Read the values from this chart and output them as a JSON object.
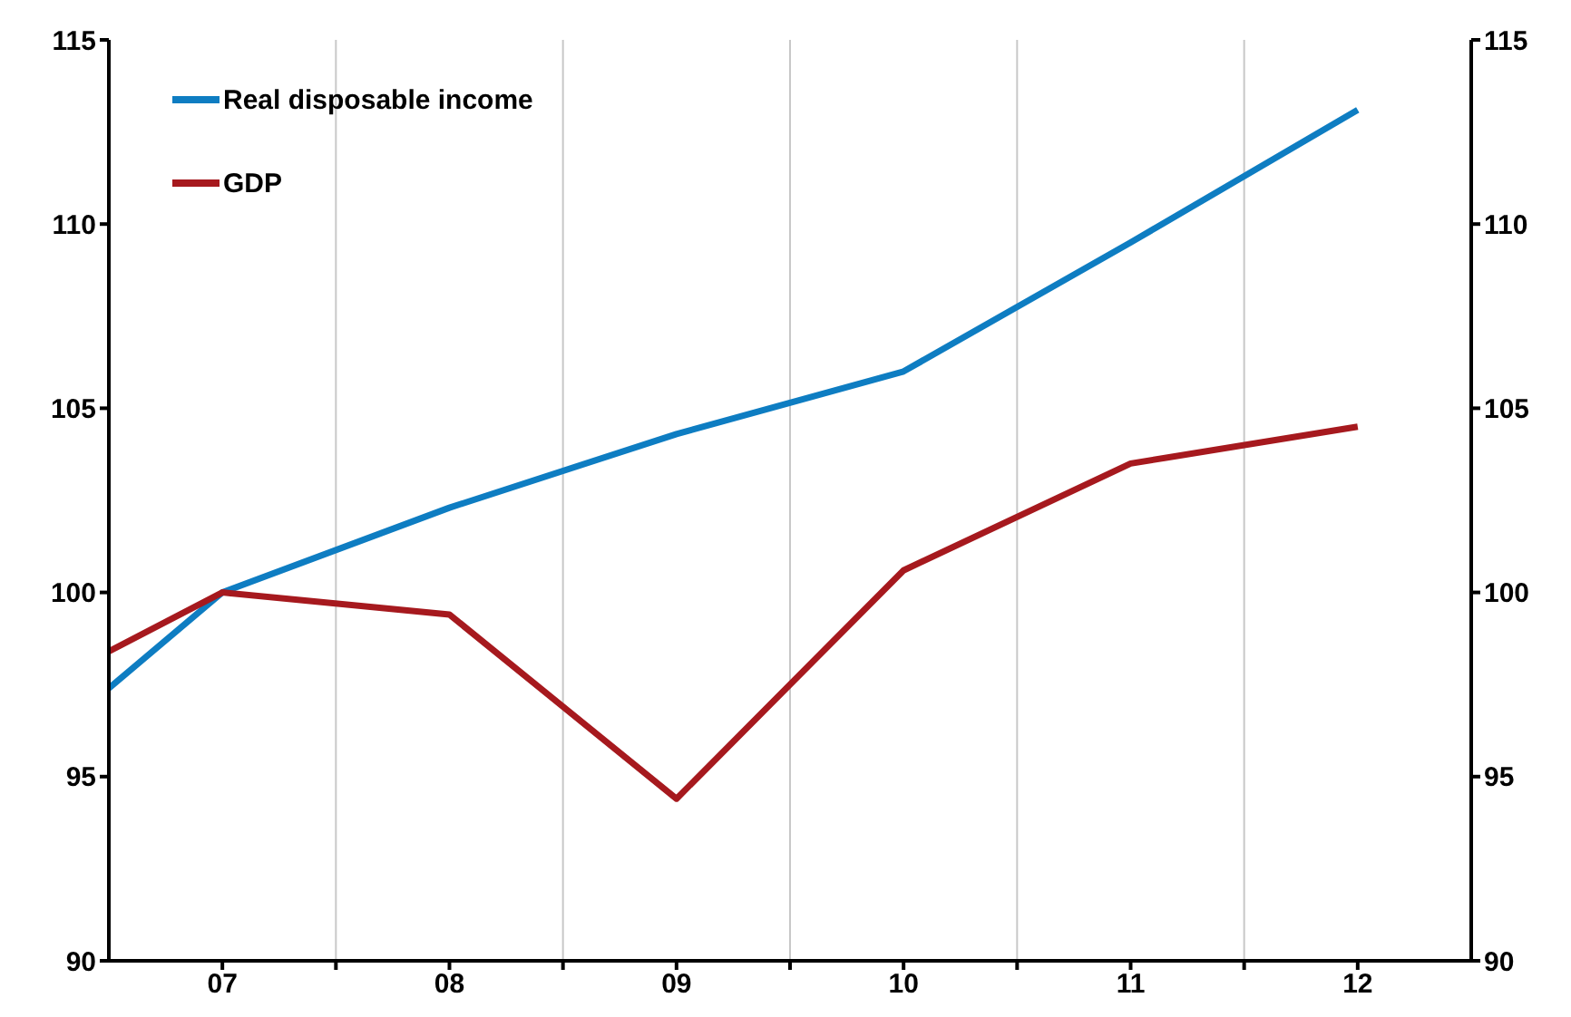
{
  "chart_data": {
    "type": "line",
    "x": [
      2006.5,
      2007,
      2008,
      2009,
      2010,
      2011,
      2012
    ],
    "series": [
      {
        "name": "Real disposable income",
        "color": "#0e7dc2",
        "values": [
          97.4,
          100,
          102.3,
          104.3,
          106.0,
          109.5,
          113.1
        ]
      },
      {
        "name": "GDP",
        "color": "#a6191e",
        "values": [
          98.4,
          100,
          99.4,
          94.4,
          100.6,
          103.5,
          104.5
        ]
      }
    ],
    "xlim": [
      2006.5,
      2012.5
    ],
    "xticks": [
      {
        "value": 2007,
        "label": "07"
      },
      {
        "value": 2007.5,
        "label": null
      },
      {
        "value": 2008,
        "label": "08"
      },
      {
        "value": 2008.5,
        "label": null
      },
      {
        "value": 2009,
        "label": "09"
      },
      {
        "value": 2009.5,
        "label": null
      },
      {
        "value": 2010,
        "label": "10"
      },
      {
        "value": 2010.5,
        "label": null
      },
      {
        "value": 2011,
        "label": "11"
      },
      {
        "value": 2011.5,
        "label": null
      },
      {
        "value": 2012,
        "label": "12"
      }
    ],
    "ylim": [
      90,
      115
    ],
    "yticks": [
      90,
      95,
      100,
      105,
      110,
      115
    ],
    "y2lim": [
      90,
      115
    ],
    "y2ticks": [
      90,
      95,
      100,
      105,
      110,
      115
    ],
    "grid": "x",
    "legend": "top left",
    "marker": "none",
    "line_style": "solid"
  }
}
